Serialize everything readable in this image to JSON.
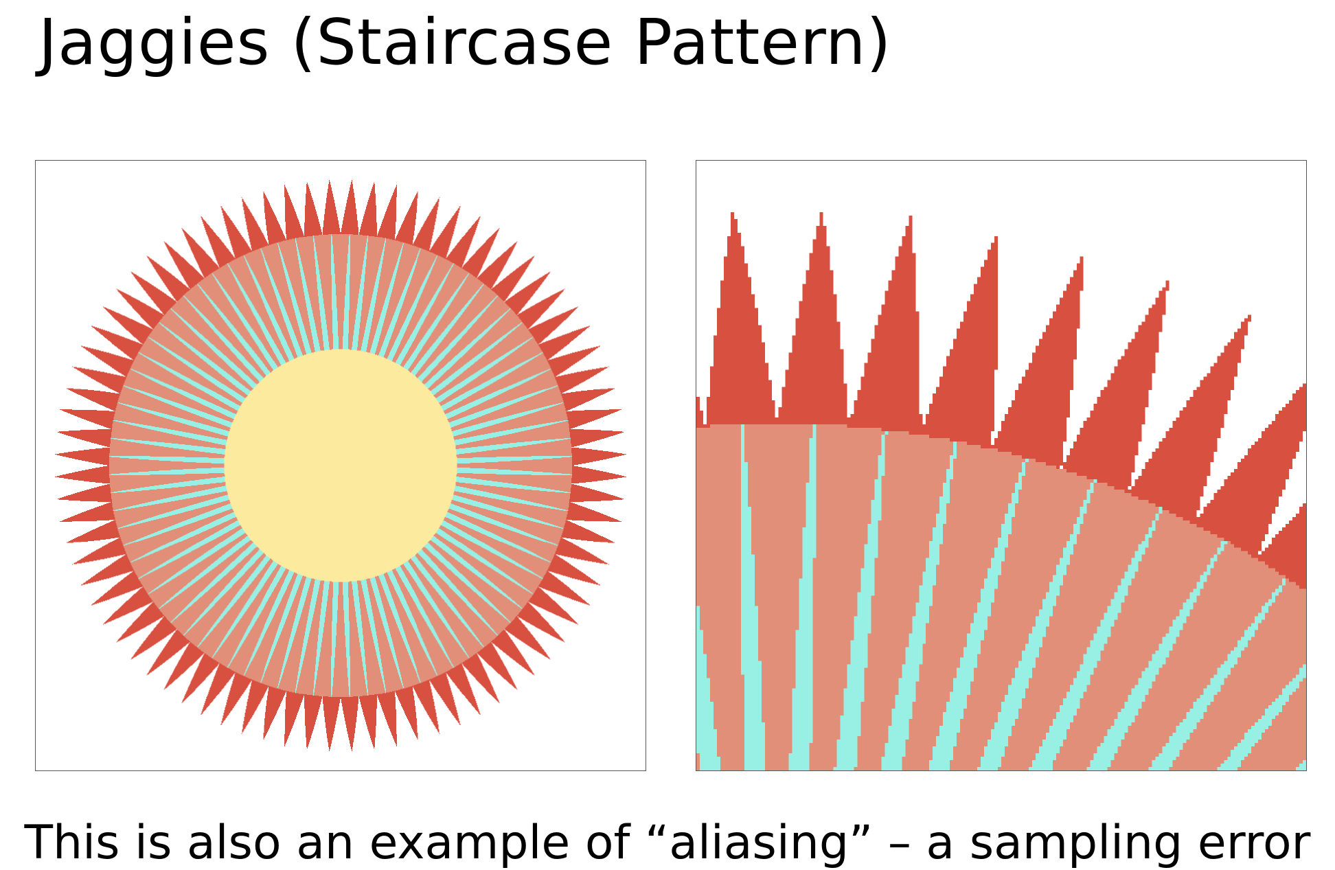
{
  "slide": {
    "title": "Jaggies (Staircase Pattern)",
    "caption": "This is also an example of “aliasing” – a sampling error"
  },
  "colors": {
    "background": "#ffffff",
    "spike_red": "#d85140",
    "ring_salmon": "#e28f7a",
    "ray_cyan": "#98f0e4",
    "center_yellow": "#fcea9e",
    "frame_border": "#555555"
  },
  "figures": {
    "left_panel": "full sunburst rendered at low resolution",
    "right_panel": "magnified crop of upper-right edge showing staircase pixels"
  }
}
